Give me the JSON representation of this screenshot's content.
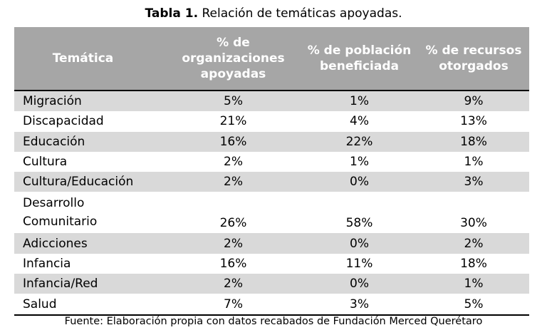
{
  "caption": {
    "label": "Tabla 1.",
    "title": "Relación de temáticas apoyadas."
  },
  "headers": [
    "Temática",
    "% de organizaciones apoyadas",
    "% de población beneficiada",
    "% de recursos otorgados"
  ],
  "rows": [
    [
      "Migración",
      "5%",
      "1%",
      "9%"
    ],
    [
      "Discapacidad",
      "21%",
      "4%",
      "13%"
    ],
    [
      "Educación",
      "16%",
      "22%",
      "18%"
    ],
    [
      "Cultura",
      "2%",
      "1%",
      "1%"
    ],
    [
      "Cultura/Educación",
      "2%",
      "0%",
      "3%"
    ],
    [
      "Desarrollo Comunitario",
      "26%",
      "58%",
      "30%"
    ],
    [
      "Adicciones",
      "2%",
      "0%",
      "2%"
    ],
    [
      "Infancia",
      "16%",
      "11%",
      "18%"
    ],
    [
      "Infancia/Red",
      "2%",
      "0%",
      "1%"
    ],
    [
      "Salud",
      "7%",
      "3%",
      "5%"
    ]
  ],
  "source": "Fuente: Elaboración propia con datos recabados de Fundación Merced Querétaro"
}
